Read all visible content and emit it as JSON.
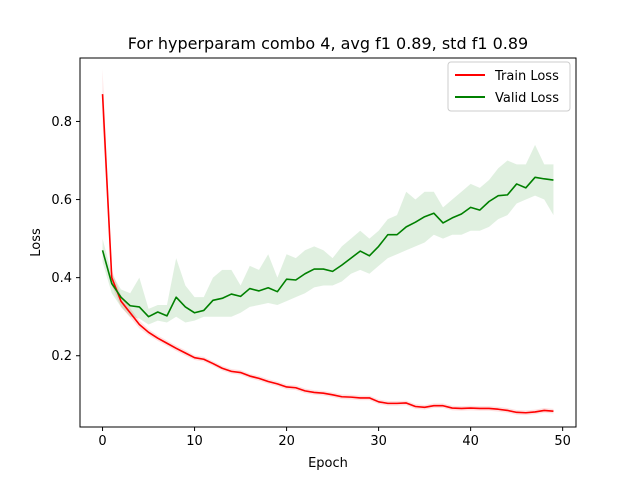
{
  "chart_data": {
    "type": "line",
    "title": "For hyperparam combo 4, avg f1 0.89, std f1 0.89",
    "xlabel": "Epoch",
    "ylabel": "Loss",
    "xlim": [
      -2.45,
      51.45
    ],
    "ylim": [
      0.0175,
      0.9625
    ],
    "x_ticks": [
      0,
      10,
      20,
      30,
      40,
      50
    ],
    "y_ticks": [
      0.2,
      0.4,
      0.6,
      0.8
    ],
    "grid": false,
    "legend_position": "top-right",
    "x": [
      0,
      1,
      2,
      3,
      4,
      5,
      6,
      7,
      8,
      9,
      10,
      11,
      12,
      13,
      14,
      15,
      16,
      17,
      18,
      19,
      20,
      21,
      22,
      23,
      24,
      25,
      26,
      27,
      28,
      29,
      30,
      31,
      32,
      33,
      34,
      35,
      36,
      37,
      38,
      39,
      40,
      41,
      42,
      43,
      44,
      45,
      46,
      47,
      48,
      49
    ],
    "series": [
      {
        "name": "Train Loss",
        "color": "#ff0000",
        "values": [
          0.87,
          0.4,
          0.34,
          0.31,
          0.28,
          0.26,
          0.245,
          0.232,
          0.219,
          0.207,
          0.195,
          0.191,
          0.18,
          0.168,
          0.16,
          0.157,
          0.148,
          0.142,
          0.134,
          0.128,
          0.12,
          0.118,
          0.11,
          0.106,
          0.104,
          0.1,
          0.095,
          0.094,
          0.092,
          0.092,
          0.082,
          0.078,
          0.078,
          0.079,
          0.07,
          0.068,
          0.072,
          0.072,
          0.066,
          0.065,
          0.066,
          0.065,
          0.065,
          0.063,
          0.06,
          0.055,
          0.054,
          0.056,
          0.06,
          0.058
        ],
        "band_lower": [
          0.8,
          0.38,
          0.325,
          0.298,
          0.27,
          0.252,
          0.238,
          0.225,
          0.212,
          0.2,
          0.189,
          0.185,
          0.174,
          0.162,
          0.154,
          0.151,
          0.142,
          0.136,
          0.128,
          0.122,
          0.114,
          0.112,
          0.104,
          0.1,
          0.098,
          0.094,
          0.089,
          0.088,
          0.086,
          0.086,
          0.076,
          0.072,
          0.072,
          0.073,
          0.064,
          0.062,
          0.066,
          0.066,
          0.06,
          0.059,
          0.06,
          0.059,
          0.059,
          0.057,
          0.054,
          0.049,
          0.048,
          0.05,
          0.054,
          0.052
        ],
        "band_upper": [
          0.935,
          0.42,
          0.355,
          0.322,
          0.29,
          0.268,
          0.252,
          0.239,
          0.226,
          0.214,
          0.201,
          0.197,
          0.186,
          0.174,
          0.166,
          0.163,
          0.154,
          0.148,
          0.14,
          0.134,
          0.126,
          0.124,
          0.116,
          0.112,
          0.11,
          0.106,
          0.101,
          0.1,
          0.098,
          0.098,
          0.088,
          0.084,
          0.084,
          0.085,
          0.076,
          0.074,
          0.078,
          0.078,
          0.072,
          0.071,
          0.072,
          0.071,
          0.071,
          0.069,
          0.066,
          0.061,
          0.06,
          0.062,
          0.066,
          0.064
        ]
      },
      {
        "name": "Valid Loss",
        "color": "#008000",
        "values": [
          0.47,
          0.385,
          0.35,
          0.328,
          0.325,
          0.3,
          0.312,
          0.302,
          0.35,
          0.325,
          0.31,
          0.316,
          0.342,
          0.347,
          0.358,
          0.352,
          0.372,
          0.366,
          0.374,
          0.364,
          0.396,
          0.394,
          0.41,
          0.422,
          0.422,
          0.416,
          0.432,
          0.45,
          0.468,
          0.456,
          0.48,
          0.51,
          0.51,
          0.53,
          0.542,
          0.556,
          0.565,
          0.54,
          0.553,
          0.563,
          0.58,
          0.573,
          0.595,
          0.61,
          0.612,
          0.64,
          0.63,
          0.657,
          0.653,
          0.65
        ],
        "band_lower": [
          0.44,
          0.36,
          0.325,
          0.3,
          0.295,
          0.28,
          0.29,
          0.285,
          0.3,
          0.285,
          0.29,
          0.3,
          0.3,
          0.3,
          0.3,
          0.31,
          0.325,
          0.33,
          0.335,
          0.33,
          0.34,
          0.35,
          0.36,
          0.375,
          0.38,
          0.38,
          0.39,
          0.41,
          0.42,
          0.41,
          0.43,
          0.45,
          0.46,
          0.47,
          0.48,
          0.49,
          0.51,
          0.5,
          0.51,
          0.51,
          0.52,
          0.52,
          0.53,
          0.55,
          0.56,
          0.59,
          0.6,
          0.61,
          0.6,
          0.56
        ],
        "band_upper": [
          0.5,
          0.41,
          0.37,
          0.36,
          0.4,
          0.32,
          0.33,
          0.33,
          0.45,
          0.38,
          0.35,
          0.35,
          0.4,
          0.42,
          0.42,
          0.38,
          0.43,
          0.42,
          0.46,
          0.4,
          0.46,
          0.45,
          0.47,
          0.48,
          0.47,
          0.45,
          0.48,
          0.5,
          0.52,
          0.5,
          0.52,
          0.55,
          0.56,
          0.62,
          0.6,
          0.62,
          0.62,
          0.58,
          0.6,
          0.62,
          0.64,
          0.63,
          0.65,
          0.68,
          0.7,
          0.69,
          0.69,
          0.74,
          0.69,
          0.69
        ]
      }
    ]
  }
}
